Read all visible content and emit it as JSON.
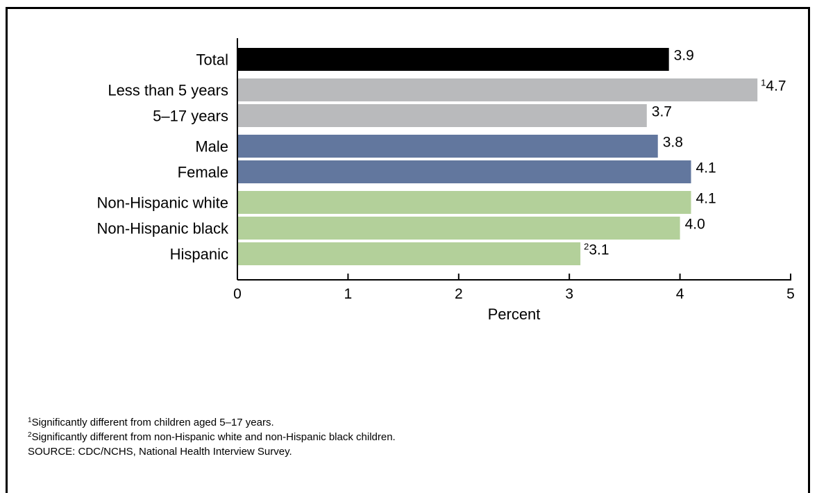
{
  "chart_data": {
    "type": "bar",
    "orientation": "horizontal",
    "xlabel": "Percent",
    "ylabel": "",
    "xlim": [
      0,
      5
    ],
    "xticks": [
      "0",
      "1",
      "2",
      "3",
      "4",
      "5"
    ],
    "grid": false,
    "legend": "none",
    "groups": [
      {
        "color": "#000000",
        "bars": [
          {
            "category": "Total",
            "value": 3.9,
            "label": "3.9",
            "marker": ""
          }
        ]
      },
      {
        "color": "#b9babc",
        "bars": [
          {
            "category": "Less than 5 years",
            "value": 4.7,
            "label": "4.7",
            "marker": "1"
          },
          {
            "category": "5–17 years",
            "value": 3.7,
            "label": "3.7",
            "marker": ""
          }
        ]
      },
      {
        "color": "#62779e",
        "bars": [
          {
            "category": "Male",
            "value": 3.8,
            "label": "3.8",
            "marker": ""
          },
          {
            "category": "Female",
            "value": 4.1,
            "label": "4.1",
            "marker": ""
          }
        ]
      },
      {
        "color": "#b3d09a",
        "bars": [
          {
            "category": "Non-Hispanic white",
            "value": 4.1,
            "label": "4.1",
            "marker": ""
          },
          {
            "category": "Non-Hispanic black",
            "value": 4.0,
            "label": "4.0",
            "marker": ""
          },
          {
            "category": "Hispanic",
            "value": 3.1,
            "label": "3.1",
            "marker": "2"
          }
        ]
      }
    ]
  },
  "footnotes": {
    "note1_marker": "1",
    "note1": "Significantly different from children aged 5–17 years.",
    "note2_marker": "2",
    "note2": "Significantly different from non-Hispanic white and non-Hispanic black children.",
    "source": "SOURCE: CDC/NCHS, National Health Interview Survey."
  }
}
